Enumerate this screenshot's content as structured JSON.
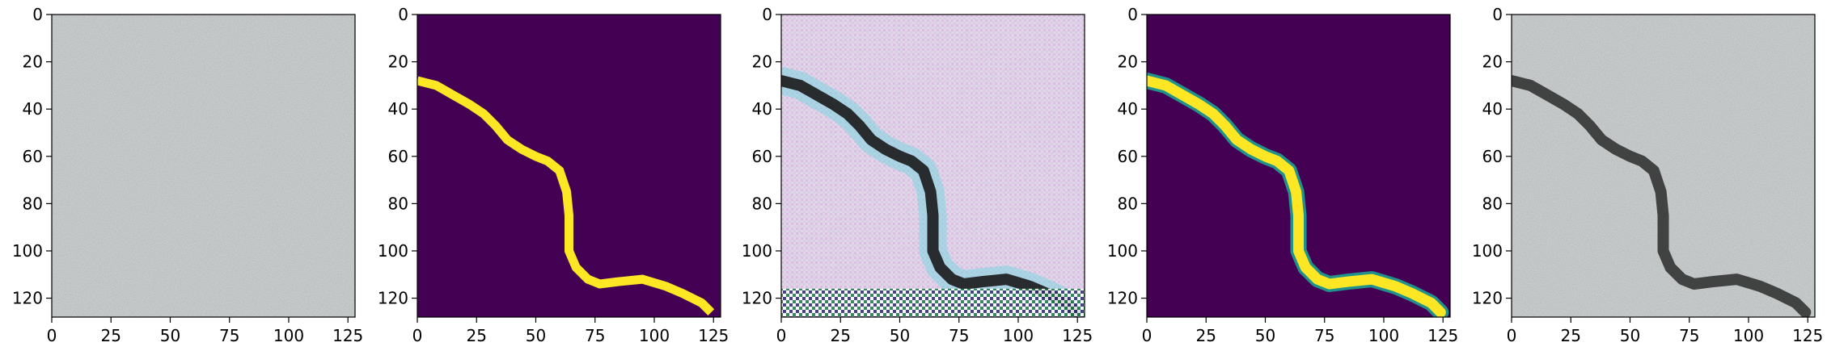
{
  "figure": {
    "panels": [
      {
        "kind": "photo",
        "description_name": "concrete-texture"
      },
      {
        "kind": "mask",
        "description_name": "ground-truth-mask"
      },
      {
        "kind": "noisy",
        "description_name": "generated-image"
      },
      {
        "kind": "soft-mask",
        "description_name": "predicted-mask"
      },
      {
        "kind": "overlay",
        "description_name": "overlay-image"
      }
    ],
    "x_ticks": [
      "0",
      "25",
      "50",
      "75",
      "100",
      "125"
    ],
    "y_ticks": [
      "0",
      "20",
      "40",
      "60",
      "80",
      "100",
      "120"
    ],
    "axis_range": [
      0,
      128
    ],
    "crack_path": [
      [
        0,
        28
      ],
      [
        8,
        30
      ],
      [
        15,
        34
      ],
      [
        22,
        38
      ],
      [
        28,
        42
      ],
      [
        33,
        47
      ],
      [
        38,
        53
      ],
      [
        44,
        57
      ],
      [
        50,
        60
      ],
      [
        55,
        62
      ],
      [
        60,
        66
      ],
      [
        63,
        75
      ],
      [
        64,
        85
      ],
      [
        64,
        100
      ],
      [
        67,
        107
      ],
      [
        72,
        112
      ],
      [
        77,
        114
      ],
      [
        85,
        113
      ],
      [
        95,
        112
      ],
      [
        105,
        115
      ],
      [
        112,
        118
      ],
      [
        120,
        122
      ],
      [
        124,
        126
      ]
    ],
    "colors": {
      "mask_bg": "#440154",
      "mask_fg": "#fde725",
      "soft_edge": "#21918c",
      "concrete": "#cfd3d3",
      "crack": "#2a2a2a"
    }
  }
}
